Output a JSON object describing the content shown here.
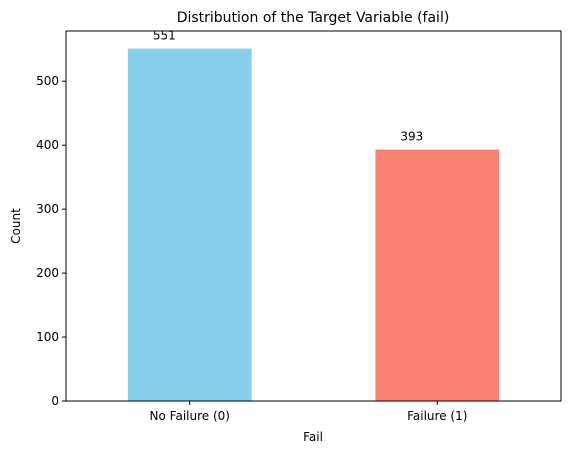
{
  "chart_data": {
    "type": "bar",
    "title": "Distribution of the Target Variable (fail)",
    "xlabel": "Fail",
    "ylabel": "Count",
    "categories": [
      "No Failure (0)",
      "Failure (1)"
    ],
    "values": [
      551,
      393
    ],
    "data_labels": [
      "551",
      "393"
    ],
    "colors": [
      "#87ceeb",
      "#fa8072"
    ],
    "ylim": [
      0,
      578.55
    ],
    "yticks": [
      0,
      100,
      200,
      300,
      400,
      500
    ],
    "grid": false,
    "legend": "none"
  }
}
